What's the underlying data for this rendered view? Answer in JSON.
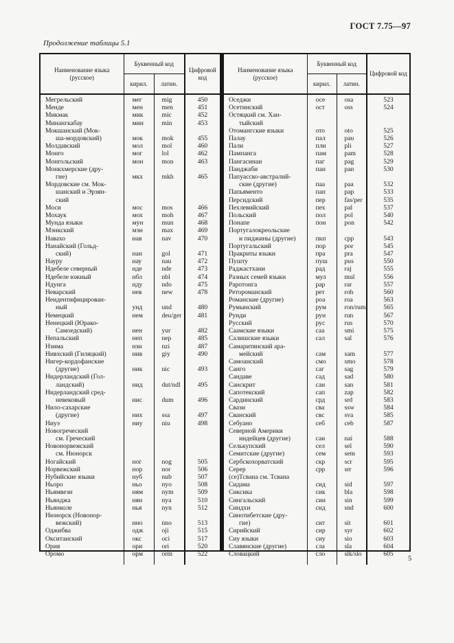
{
  "page": {
    "doc_code": "ГОСТ 7.75—97",
    "table_caption": "Продолжение таблицы 5.1",
    "page_number": "5"
  },
  "headers": {
    "name": "Наименование языка (русское)",
    "letter_code": "Буквенный код",
    "cyr": "кирил.",
    "lat": "латин.",
    "num": "Цифровой код"
  },
  "left_rows": [
    {
      "n": [
        "Мегрельский"
      ],
      "c": "мег",
      "l": "mig",
      "d": "450"
    },
    {
      "n": [
        "Менде"
      ],
      "c": "мен",
      "l": "men",
      "d": "451"
    },
    {
      "n": [
        "Микмак"
      ],
      "c": "мик",
      "l": "mic",
      "d": "452"
    },
    {
      "n": [
        "Минангкабау"
      ],
      "c": "мин",
      "l": "min",
      "d": "453"
    },
    {
      "n": [
        "Мокшанский (Мок-",
        "ша-мордовский)"
      ],
      "c": "мок",
      "l": "mok",
      "d": "455"
    },
    {
      "n": [
        "Молдавский"
      ],
      "c": "мол",
      "l": "mol",
      "d": "460"
    },
    {
      "n": [
        "Монго"
      ],
      "c": "мог",
      "l": "lol",
      "d": "462"
    },
    {
      "n": [
        "Монгольский"
      ],
      "c": "мон",
      "l": "mon",
      "d": "463"
    },
    {
      "n": [
        "Монкхмерские (дру-",
        "гие)"
      ],
      "c": "мкх",
      "l": "mkh",
      "d": "465"
    },
    {
      "n": [
        "Мордовские см. Мок-",
        "шанский и Эрзян-",
        "ский"
      ],
      "c": "",
      "l": "",
      "d": ""
    },
    {
      "n": [
        "Моси"
      ],
      "c": "мос",
      "l": "mos",
      "d": "466"
    },
    {
      "n": [
        "Мохаук"
      ],
      "c": "мох",
      "l": "moh",
      "d": "467"
    },
    {
      "n": [
        "Мунда языки"
      ],
      "c": "мун",
      "l": "mun",
      "d": "468"
    },
    {
      "n": [
        "Мэнкский"
      ],
      "c": "мэн",
      "l": "max",
      "d": "469"
    },
    {
      "n": [
        "Навахо"
      ],
      "c": "нав",
      "l": "nav",
      "d": "470"
    },
    {
      "n": [
        "Нанайский (Гольд-",
        "ский)"
      ],
      "c": "нан",
      "l": "gol",
      "d": "471"
    },
    {
      "n": [
        "Науру"
      ],
      "c": "нау",
      "l": "nau",
      "d": "472"
    },
    {
      "n": [
        "Ндебеле северный"
      ],
      "c": "нде",
      "l": "nde",
      "d": "473"
    },
    {
      "n": [
        "Ндебеле южный"
      ],
      "c": "нбл",
      "l": "nbl",
      "d": "474"
    },
    {
      "n": [
        "Ндунга"
      ],
      "c": "нду",
      "l": "ndo",
      "d": "475"
    },
    {
      "n": [
        "Неварский"
      ],
      "c": "нев",
      "l": "new",
      "d": "478"
    },
    {
      "n": [
        "Неидентифицирован-",
        "ный"
      ],
      "c": "унд",
      "l": "und",
      "d": "480"
    },
    {
      "n": [
        "Немецкий"
      ],
      "c": "нем",
      "l": "deu/ger",
      "d": "481"
    },
    {
      "n": [
        "Ненецкий (Юрако-",
        "Самоедский)"
      ],
      "c": "нен",
      "l": "yur",
      "d": "482"
    },
    {
      "n": [
        "Непальский"
      ],
      "c": "неп",
      "l": "nep",
      "d": "485"
    },
    {
      "n": [
        "Нзима"
      ],
      "c": "нзи",
      "l": "nzi",
      "d": "487"
    },
    {
      "n": [
        "Нивхский (Гиляцкий)"
      ],
      "c": "нив",
      "l": "giy",
      "d": "490"
    },
    {
      "n": [
        "Нигер-кордофанские",
        "(другие)"
      ],
      "c": "ник",
      "l": "nic",
      "d": "493"
    },
    {
      "n": [
        "Нидерландский (Гол-",
        "ландский)"
      ],
      "c": "нид",
      "l": "dut/ndl",
      "d": "495"
    },
    {
      "n": [
        "Нидерландский сред-",
        "невековый"
      ],
      "c": "нис",
      "l": "dum",
      "d": "496"
    },
    {
      "n": [
        "Нило-сахарские",
        "(другие)"
      ],
      "c": "них",
      "l": "ssa",
      "d": "497"
    },
    {
      "n": [
        "Ниуэ"
      ],
      "c": "ниу",
      "l": "niu",
      "d": "498"
    },
    {
      "n": [
        "Новогреческий",
        "см. Греческий"
      ],
      "c": "",
      "l": "",
      "d": ""
    },
    {
      "n": [
        "Новонорвежский",
        "см. Нюнорск"
      ],
      "c": "",
      "l": "",
      "d": ""
    },
    {
      "n": [
        "Ногайский"
      ],
      "c": "ног",
      "l": "nog",
      "d": "505"
    },
    {
      "n": [
        "Норвежский"
      ],
      "c": "нор",
      "l": "nor",
      "d": "506"
    },
    {
      "n": [
        "Нубийские языки"
      ],
      "c": "нуб",
      "l": "nub",
      "d": "507"
    },
    {
      "n": [
        "Ньоро"
      ],
      "c": "ньо",
      "l": "nyo",
      "d": "508"
    },
    {
      "n": [
        "Ньямвези"
      ],
      "c": "ням",
      "l": "nym",
      "d": "509"
    },
    {
      "n": [
        "Ньянджа"
      ],
      "c": "нян",
      "l": "nya",
      "d": "510"
    },
    {
      "n": [
        "Ньянколе"
      ],
      "c": "нья",
      "l": "nyn",
      "d": "512"
    },
    {
      "n": [
        "Нюнорск (Новонор-",
        "вежский)"
      ],
      "c": "нно",
      "l": "nno",
      "d": "513"
    },
    {
      "n": [
        "Оджибва"
      ],
      "c": "одж",
      "l": "oji",
      "d": "515"
    },
    {
      "n": [
        "Окситанский"
      ],
      "c": "окс",
      "l": "oci",
      "d": "517"
    },
    {
      "n": [
        "Ория"
      ],
      "c": "ори",
      "l": "ori",
      "d": "520"
    },
    {
      "n": [
        "Оромо"
      ],
      "c": "орм",
      "l": "orm",
      "d": "522"
    }
  ],
  "right_rows": [
    {
      "n": [
        "Оседжи"
      ],
      "c": "осе",
      "l": "osa",
      "d": "523"
    },
    {
      "n": [
        "Осетинский"
      ],
      "c": "ост",
      "l": "oss",
      "d": "524"
    },
    {
      "n": [
        "Остяцкий см. Хан-",
        "тыйский"
      ],
      "c": "",
      "l": "",
      "d": ""
    },
    {
      "n": [
        "Отомангские языки"
      ],
      "c": "ото",
      "l": "oto",
      "d": "525"
    },
    {
      "n": [
        "Палау"
      ],
      "c": "пал",
      "l": "pau",
      "d": "526"
    },
    {
      "n": [
        "Пали"
      ],
      "c": "пли",
      "l": "pli",
      "d": "527"
    },
    {
      "n": [
        "Пампанга"
      ],
      "c": "пам",
      "l": "pam",
      "d": "528"
    },
    {
      "n": [
        "Пангасинан"
      ],
      "c": "паг",
      "l": "pag",
      "d": "529"
    },
    {
      "n": [
        "Панджаби"
      ],
      "c": "пан",
      "l": "pan",
      "d": "530"
    },
    {
      "n": [
        "Папуасско-австралий-",
        "ские (другие)"
      ],
      "c": "паа",
      "l": "paa",
      "d": "532"
    },
    {
      "n": [
        "Папьяменто"
      ],
      "c": "пап",
      "l": "pap",
      "d": "533"
    },
    {
      "n": [
        "Персидский"
      ],
      "c": "пер",
      "l": "fas/per",
      "d": "535"
    },
    {
      "n": [
        "Пехлевийский"
      ],
      "c": "пех",
      "l": "pal",
      "d": "537"
    },
    {
      "n": [
        "Польский"
      ],
      "c": "пол",
      "l": "pol",
      "d": "540"
    },
    {
      "n": [
        "Понапе"
      ],
      "c": "пон",
      "l": "pon",
      "d": "542"
    },
    {
      "n": [
        "Португалокреольские",
        "и пиджины (другие)"
      ],
      "c": "пкп",
      "l": "cpp",
      "d": "543"
    },
    {
      "n": [
        "Португальский"
      ],
      "c": "пор",
      "l": "por",
      "d": "545"
    },
    {
      "n": [
        "Пракриты языки"
      ],
      "c": "пра",
      "l": "pra",
      "d": "547"
    },
    {
      "n": [
        "Пушту"
      ],
      "c": "пуш",
      "l": "pus",
      "d": "550"
    },
    {
      "n": [
        "Раджастхани"
      ],
      "c": "рад",
      "l": "raj",
      "d": "555"
    },
    {
      "n": [
        "Разных семей языки"
      ],
      "c": "мул",
      "l": "mul",
      "d": "556"
    },
    {
      "n": [
        "Раротонга"
      ],
      "c": "рар",
      "l": "rar",
      "d": "557"
    },
    {
      "n": [
        "Ретороманский"
      ],
      "c": "рет",
      "l": "roh",
      "d": "560"
    },
    {
      "n": [
        "Романские (другие)"
      ],
      "c": "роа",
      "l": "roa",
      "d": "563"
    },
    {
      "n": [
        "Румынский"
      ],
      "c": "рум",
      "l": "ron/rum",
      "d": "565"
    },
    {
      "n": [
        "Рунди"
      ],
      "c": "рун",
      "l": "run",
      "d": "567"
    },
    {
      "n": [
        "Русский"
      ],
      "c": "рус",
      "l": "rus",
      "d": "570"
    },
    {
      "n": [
        "Саамские языки"
      ],
      "c": "саа",
      "l": "smi",
      "d": "575"
    },
    {
      "n": [
        "Салишские языки"
      ],
      "c": "сал",
      "l": "sal",
      "d": "576"
    },
    {
      "n": [
        "Самаритянский ара-",
        "мейский"
      ],
      "c": "сам",
      "l": "sam",
      "d": "577"
    },
    {
      "n": [
        "Самоанский"
      ],
      "c": "смо",
      "l": "smo",
      "d": "578"
    },
    {
      "n": [
        "Санго"
      ],
      "c": "саг",
      "l": "sag",
      "d": "579"
    },
    {
      "n": [
        "Сандаве"
      ],
      "c": "сад",
      "l": "sad",
      "d": "580"
    },
    {
      "n": [
        "Санскрит"
      ],
      "c": "сан",
      "l": "san",
      "d": "581"
    },
    {
      "n": [
        "Сапотекский"
      ],
      "c": "сап",
      "l": "zap",
      "d": "582"
    },
    {
      "n": [
        "Сардинский"
      ],
      "c": "срд",
      "l": "srd",
      "d": "583"
    },
    {
      "n": [
        "Свази"
      ],
      "c": "сва",
      "l": "ssw",
      "d": "584"
    },
    {
      "n": [
        "Сванский"
      ],
      "c": "свс",
      "l": "sva",
      "d": "585"
    },
    {
      "n": [
        "Себуано"
      ],
      "c": "себ",
      "l": "ceb",
      "d": "587"
    },
    {
      "n": [
        "Северной Америки",
        "индейцев (другие)"
      ],
      "c": "саи",
      "l": "nai",
      "d": "588"
    },
    {
      "n": [
        "Селькупский"
      ],
      "c": "сел",
      "l": "sel",
      "d": "590"
    },
    {
      "n": [
        "Семитские (другие)"
      ],
      "c": "сем",
      "l": "sem",
      "d": "593"
    },
    {
      "n": [
        "Сербскохорватский"
      ],
      "c": "скр",
      "l": "scr",
      "d": "595"
    },
    {
      "n": [
        "Серер"
      ],
      "c": "срр",
      "l": "srr",
      "d": "596"
    },
    {
      "n": [
        "(се)Тсвана см. Тсвана"
      ],
      "c": "",
      "l": "",
      "d": ""
    },
    {
      "n": [
        "Сидама"
      ],
      "c": "сид",
      "l": "sid",
      "d": "597"
    },
    {
      "n": [
        "Сиксика"
      ],
      "c": "сик",
      "l": "bla",
      "d": "598"
    },
    {
      "n": [
        "Сингальский"
      ],
      "c": "син",
      "l": "sin",
      "d": "599"
    },
    {
      "n": [
        "Синдхи"
      ],
      "c": "снд",
      "l": "snd",
      "d": "600"
    },
    {
      "n": [
        "Синотибетские (дру-",
        "гие)"
      ],
      "c": "сит",
      "l": "sit",
      "d": "601"
    },
    {
      "n": [
        "Сирийский"
      ],
      "c": "сир",
      "l": "syr",
      "d": "602"
    },
    {
      "n": [
        "Сиу языки"
      ],
      "c": "сиу",
      "l": "sio",
      "d": "603"
    },
    {
      "n": [
        "Славянские (другие)"
      ],
      "c": "сла",
      "l": "sla",
      "d": "604"
    },
    {
      "n": [
        "Словацкий"
      ],
      "c": "сло",
      "l": "slk/slo",
      "d": "605"
    }
  ]
}
